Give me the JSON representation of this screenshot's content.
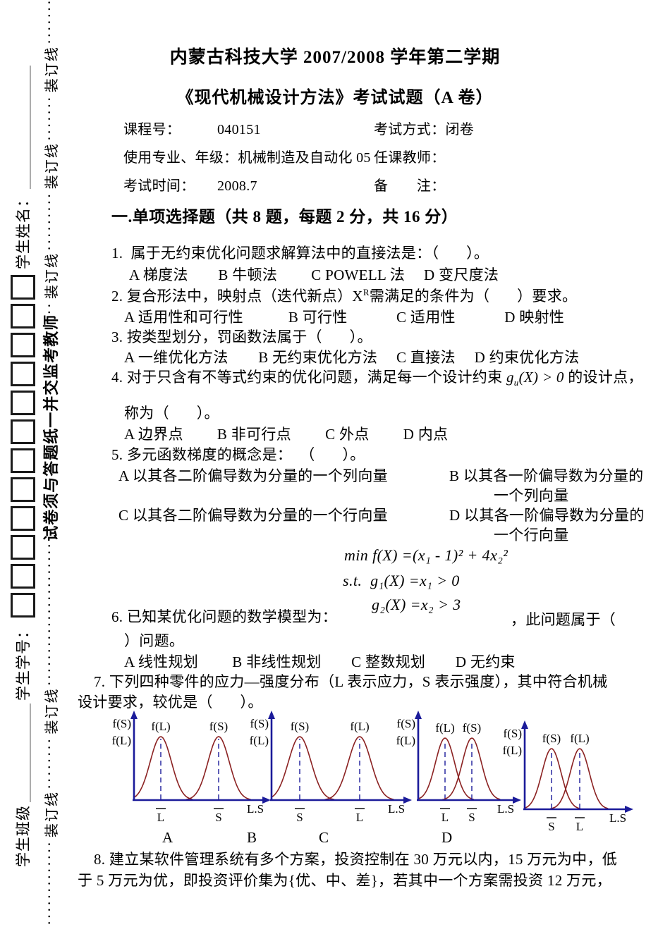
{
  "document": {
    "title": "内蒙古科技大学 2007/2008 学年第二学期",
    "subtitle": "《现代机械设计方法》考试试题（A 卷）"
  },
  "info": {
    "course_no_label": "课程号：",
    "course_no_value": "040151",
    "exam_mode": "考试方式：闭卷",
    "major": "使用专业、年级：机械制造及自动化 05",
    "teacher_label": "任课教师：",
    "exam_time_label": "考试时间：",
    "exam_time_value": "2008.7",
    "remark_label": "备　　注："
  },
  "section1": {
    "heading": "一.单项选择题（共 8 题，每题 2 分，共 16 分）",
    "q1": {
      "text": "1.  属于无约束优化问题求解算法中的直接法是：（       ）。",
      "options": "A 梯度法　　B 牛顿法　 　C POWELL 法　 D 变尺度法"
    },
    "q2": {
      "pre": "2. 复合形法中，映射点（迭代新点）X",
      "sup": "R",
      "post": "需满足的条件为（       ）要求。",
      "options": "A 适用性和可行性　　　B 可行性　　　 C 适用性　　　 D 映射性"
    },
    "q3": {
      "text": "3. 按类型划分，罚函数法属于（       ）。",
      "options": "A 一维优化方法　　B 无约束优化方法　 C 直接法　 D 约束优化方法"
    },
    "q4": {
      "pre": "4. 对于只含有不等式约束的优化问题，满足每一个设计约束 ",
      "formula_base": "g",
      "formula_sub": "u",
      "formula_rest": "(X) > 0",
      "post": " 的设计点，",
      "line2": "称为（       ）。",
      "options": "A 边界点　　 B 非可行点　　 C 外点　　 D 内点"
    },
    "q5": {
      "text": "5. 多元函数梯度的概念是：  （       ）。",
      "opt_a": "A 以其各二阶偏导数为分量的一个列向量",
      "opt_b_line1": "B 以其各一阶偏导数为分量的",
      "opt_b_line2": "一个列向量",
      "opt_c": "C 以其各二阶偏导数为分量的一个行向量",
      "opt_d_line1": "D 以其各一阶偏导数为分量的",
      "opt_d_line2": "一个行向量"
    },
    "q6": {
      "math_line1": "min f(X) =(x₁ - 1)² + 4x₂²",
      "math_line2": "s.t.  g₁(X) =x₁ > 0",
      "math_line3": "g₂(X) =x₂ > 3",
      "pre": "6. 已知某优化问题的数学模型为：",
      "post": "，此问题属于（",
      "line2": "）问题。",
      "options": "A 线性规划　　 B 非线性规划　　C 整数规划　　D 无约束"
    },
    "q7": {
      "line1": "7. 下列四种零件的应力—强度分布（L 表示应力，S 表示强度），其中符合机械",
      "line2": "设计要求，较优是（       ）。",
      "plot_labels": [
        "A",
        "B",
        "C",
        "D"
      ]
    },
    "q8": {
      "line1": "8. 建立某软件管理系统有多个方案，投资控制在 30 万元以内，15 万元为中，低",
      "line2": "于 5 万元为优，即投资评价集为{优、中、差}，若其中一个方案需投资 12 万元，"
    }
  },
  "sidebar": {
    "class_label": "学生班级",
    "id_label": "学生学号：",
    "name_label": "学生姓名：",
    "id_box_count": 12,
    "binding_label": "装订线",
    "notice": "试卷须与答题纸一并交监考教师",
    "binding_segments": [
      {
        "type": "dots",
        "count": 13
      },
      {
        "type": "label"
      },
      {
        "type": "dots",
        "count": 8
      },
      {
        "type": "label"
      },
      {
        "type": "dots",
        "count": 22
      },
      {
        "type": "notice"
      },
      {
        "type": "dots",
        "count": 2
      },
      {
        "type": "label"
      },
      {
        "type": "dots",
        "count": 9
      },
      {
        "type": "label"
      },
      {
        "type": "dots",
        "count": 7
      },
      {
        "type": "label"
      },
      {
        "type": "dots",
        "count": 14
      }
    ]
  },
  "chart_data": {
    "type": "line",
    "title": "应力—强度分布（L 表示应力，S 表示强度）",
    "colors": {
      "axis": "#1b1b9a",
      "curve": "#8b2222"
    },
    "plots": [
      {
        "label": "A",
        "x_axis_label": "L.S",
        "y_axis_labels": [
          "f(S)",
          "f(L)"
        ],
        "separation": "wide",
        "curves": [
          {
            "peak_label": "f(L)",
            "mean_label": "L"
          },
          {
            "peak_label": "f(S)",
            "mean_label": "S"
          }
        ]
      },
      {
        "label": "B",
        "x_axis_label": "L.S",
        "y_axis_labels": [
          "f(S)",
          "f(L)"
        ],
        "separation": "wide",
        "curves": [
          {
            "peak_label": "f(S)",
            "mean_label": "S"
          },
          {
            "peak_label": "f(L)",
            "mean_label": "L"
          }
        ]
      },
      {
        "label": "C",
        "x_axis_label": "L.S",
        "y_axis_labels": [
          "f(S)",
          "f(L)"
        ],
        "separation": "overlapping",
        "curves": [
          {
            "peak_label": "f(L)",
            "mean_label": "L"
          },
          {
            "peak_label": "f(S)",
            "mean_label": "S"
          }
        ]
      },
      {
        "label": "D",
        "x_axis_label": "L.S",
        "y_axis_labels": [
          "f(S)",
          "f(L)"
        ],
        "separation": "overlapping",
        "curves": [
          {
            "peak_label": "f(S)",
            "mean_label": "S"
          },
          {
            "peak_label": "f(L)",
            "mean_label": "L"
          }
        ]
      }
    ]
  }
}
